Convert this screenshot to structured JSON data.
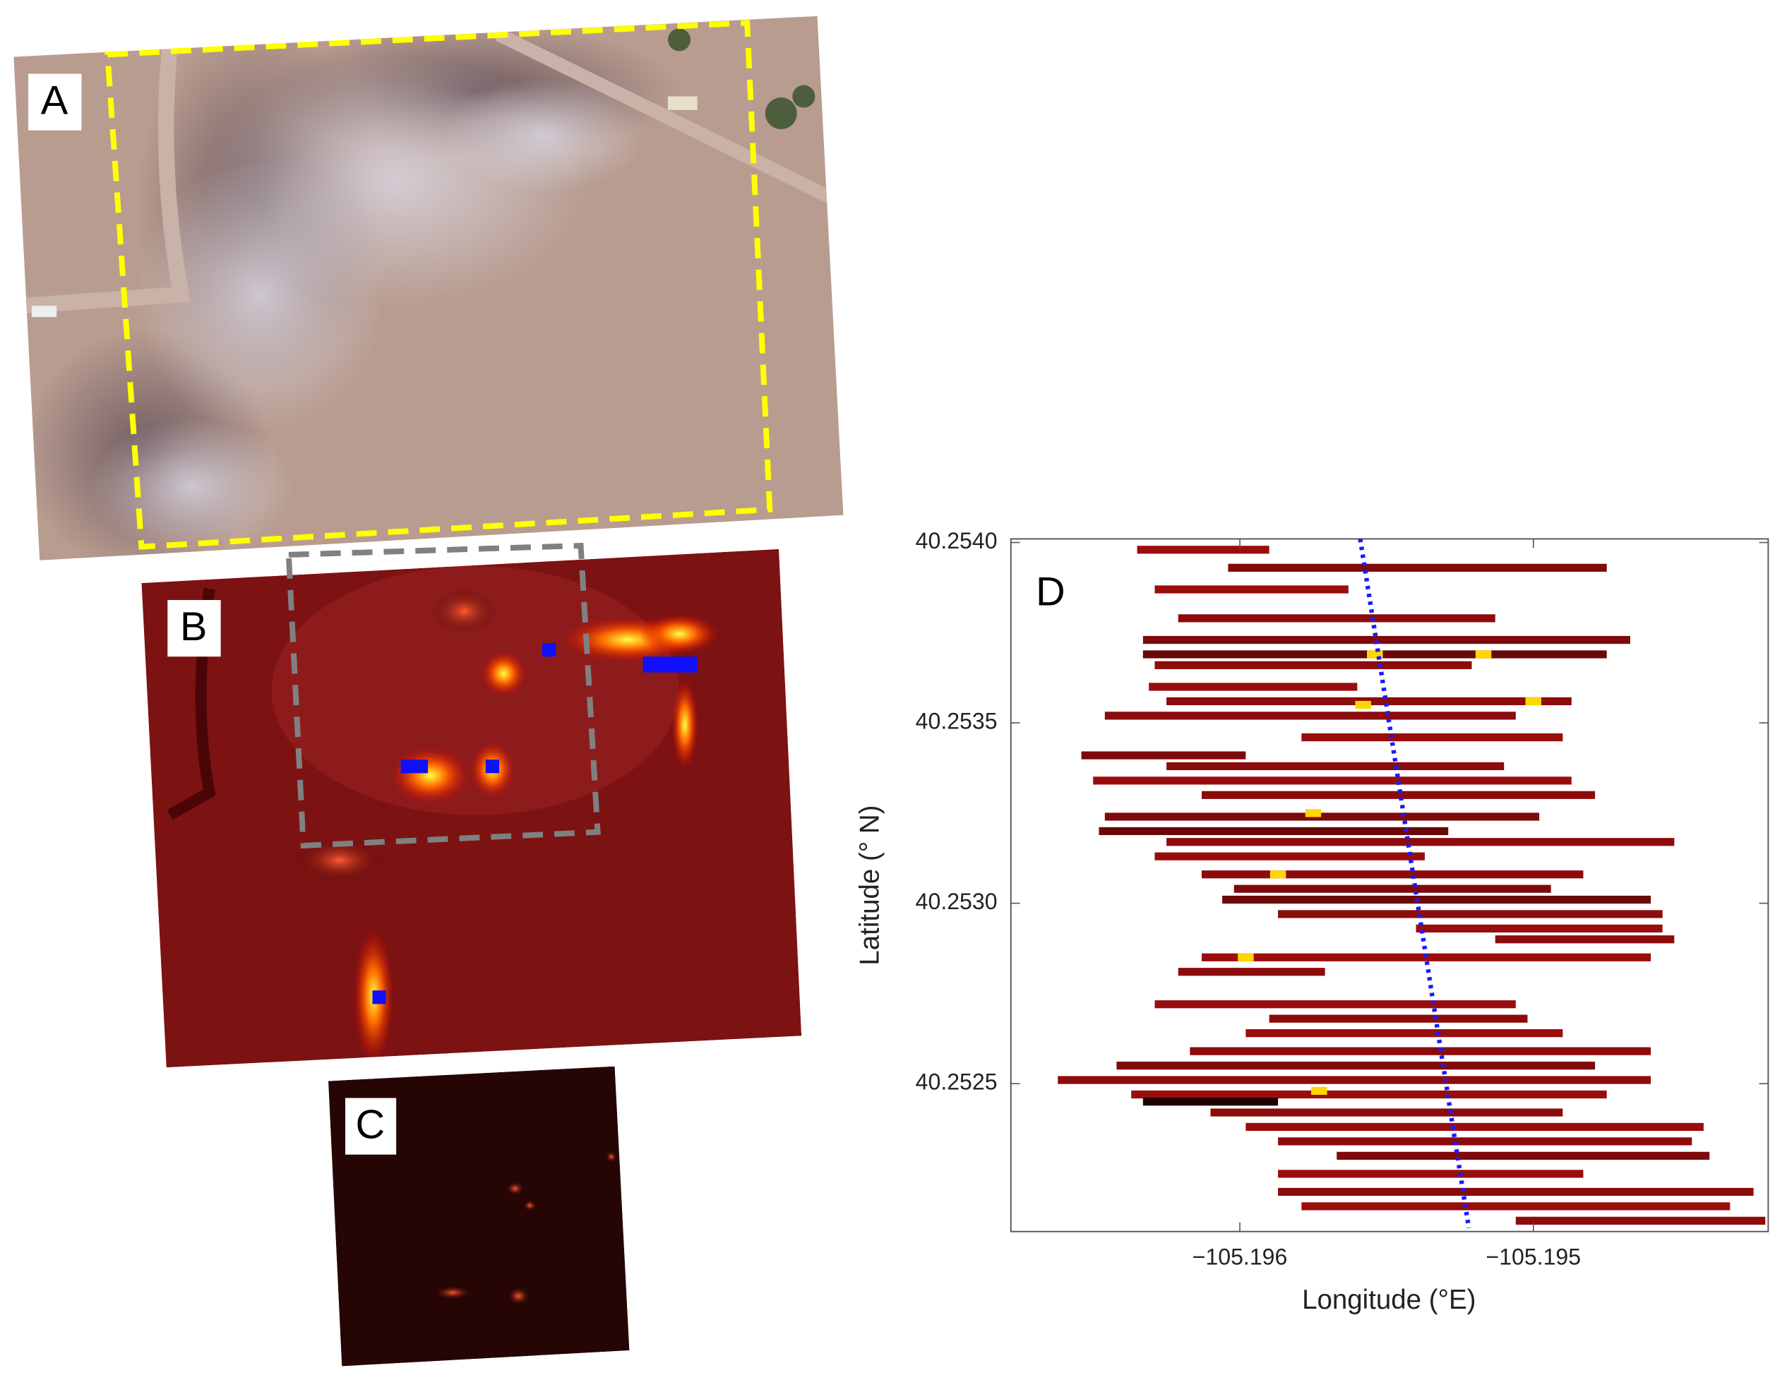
{
  "panel_labels": [
    "A",
    "B",
    "C"
  ],
  "chart_data": {
    "type": "strip",
    "label": "D",
    "xlabel": "Longitude (°E)",
    "ylabel": "Latitude (° N)",
    "xlim": [
      -105.19678,
      -105.1942
    ],
    "ylim": [
      40.25209,
      40.25401
    ],
    "xticks": [
      {
        "value": -105.196,
        "label": "−105.196"
      },
      {
        "value": -105.195,
        "label": "−105.195"
      }
    ],
    "yticks": [
      {
        "value": 40.2525,
        "label": "40.2525"
      },
      {
        "value": 40.253,
        "label": "40.2530"
      },
      {
        "value": 40.2535,
        "label": "40.2535"
      },
      {
        "value": 40.254,
        "label": "40.2540"
      }
    ],
    "strips": [
      {
        "y": 40.25398,
        "x": [
          -105.19635,
          -105.1959
        ],
        "color": "#9a0d0d"
      },
      {
        "y": 40.25393,
        "x": [
          -105.19604,
          -105.19475
        ],
        "color": "#7f0a0a"
      },
      {
        "y": 40.25387,
        "x": [
          -105.19629,
          -105.19563
        ],
        "color": "#9a0d0d"
      },
      {
        "y": 40.25379,
        "x": [
          -105.19621,
          -105.19513
        ],
        "color": "#8c0b0b"
      },
      {
        "y": 40.25373,
        "x": [
          -105.19633,
          -105.19467
        ],
        "color": "#7f0a0a"
      },
      {
        "y": 40.25369,
        "x": [
          -105.19633,
          -105.19475
        ],
        "color": "#6a0808"
      },
      {
        "y": 40.25366,
        "x": [
          -105.19629,
          -105.19521
        ],
        "color": "#8c0b0b"
      },
      {
        "y": 40.2536,
        "x": [
          -105.19631,
          -105.1956
        ],
        "color": "#9a0d0d"
      },
      {
        "y": 40.25356,
        "x": [
          -105.19625,
          -105.19487
        ],
        "color": "#8c0b0b"
      },
      {
        "y": 40.25352,
        "x": [
          -105.19646,
          -105.19506
        ],
        "color": "#8a0c0c"
      },
      {
        "y": 40.25346,
        "x": [
          -105.19579,
          -105.1949
        ],
        "color": "#9a0d0d"
      },
      {
        "y": 40.25341,
        "x": [
          -105.19654,
          -105.19598
        ],
        "color": "#7f0a0a"
      },
      {
        "y": 40.25338,
        "x": [
          -105.19625,
          -105.1951
        ],
        "color": "#8c0b0b"
      },
      {
        "y": 40.25334,
        "x": [
          -105.1965,
          -105.19487
        ],
        "color": "#9a0d0d"
      },
      {
        "y": 40.2533,
        "x": [
          -105.19613,
          -105.19479
        ],
        "color": "#8c0b0b"
      },
      {
        "y": 40.25324,
        "x": [
          -105.19646,
          -105.19498
        ],
        "color": "#7f0a0a"
      },
      {
        "y": 40.2532,
        "x": [
          -105.19648,
          -105.19529
        ],
        "color": "#6a0808"
      },
      {
        "y": 40.25317,
        "x": [
          -105.19625,
          -105.19452
        ],
        "color": "#8c0b0b"
      },
      {
        "y": 40.25313,
        "x": [
          -105.19629,
          -105.19537
        ],
        "color": "#9a0d0d"
      },
      {
        "y": 40.25308,
        "x": [
          -105.19613,
          -105.19483
        ],
        "color": "#8c0b0b"
      },
      {
        "y": 40.25304,
        "x": [
          -105.19602,
          -105.19494
        ],
        "color": "#7f0a0a"
      },
      {
        "y": 40.25301,
        "x": [
          -105.19606,
          -105.1946
        ],
        "color": "#6a0808"
      },
      {
        "y": 40.25297,
        "x": [
          -105.19587,
          -105.19456
        ],
        "color": "#8c0b0b"
      },
      {
        "y": 40.25293,
        "x": [
          -105.1954,
          -105.19456
        ],
        "color": "#9a0d0d"
      },
      {
        "y": 40.2529,
        "x": [
          -105.19513,
          -105.19452
        ],
        "color": "#8c0b0b"
      },
      {
        "y": 40.25285,
        "x": [
          -105.19613,
          -105.1946
        ],
        "color": "#9a0d0d"
      },
      {
        "y": 40.25281,
        "x": [
          -105.19621,
          -105.19571
        ],
        "color": "#8c0b0b"
      },
      {
        "y": 40.25272,
        "x": [
          -105.19629,
          -105.19506
        ],
        "color": "#9a0d0d"
      },
      {
        "y": 40.25268,
        "x": [
          -105.1959,
          -105.19502
        ],
        "color": "#8c0b0b"
      },
      {
        "y": 40.25264,
        "x": [
          -105.19598,
          -105.1949
        ],
        "color": "#9a0d0d"
      },
      {
        "y": 40.25259,
        "x": [
          -105.19617,
          -105.1946
        ],
        "color": "#8c0b0b"
      },
      {
        "y": 40.25255,
        "x": [
          -105.19642,
          -105.19479
        ],
        "color": "#7f0a0a"
      },
      {
        "y": 40.25251,
        "x": [
          -105.19662,
          -105.1946
        ],
        "color": "#8c0b0b"
      },
      {
        "y": 40.25247,
        "x": [
          -105.19637,
          -105.19475
        ],
        "color": "#9a0d0d"
      },
      {
        "y": 40.25245,
        "x": [
          -105.19633,
          -105.19587
        ],
        "color": "#200000"
      },
      {
        "y": 40.25242,
        "x": [
          -105.1961,
          -105.1949
        ],
        "color": "#8c0b0b"
      },
      {
        "y": 40.25238,
        "x": [
          -105.19598,
          -105.19442
        ],
        "color": "#9a0d0d"
      },
      {
        "y": 40.25234,
        "x": [
          -105.19587,
          -105.19446
        ],
        "color": "#8c0b0b"
      },
      {
        "y": 40.2523,
        "x": [
          -105.19567,
          -105.1944
        ],
        "color": "#7f0a0a"
      },
      {
        "y": 40.25225,
        "x": [
          -105.19587,
          -105.19483
        ],
        "color": "#9a0d0d"
      },
      {
        "y": 40.2522,
        "x": [
          -105.19587,
          -105.19425
        ],
        "color": "#8c0b0b"
      },
      {
        "y": 40.25216,
        "x": [
          -105.19579,
          -105.19433
        ],
        "color": "#9a0d0d"
      },
      {
        "y": 40.25212,
        "x": [
          -105.19506,
          -105.19421
        ],
        "color": "#8c0b0b"
      }
    ],
    "hotspots": {
      "color": "#ffd700",
      "x": [
        -105.19554,
        -105.19517,
        -105.19575,
        -105.19587,
        -105.19573,
        -105.19598,
        -105.195,
        -105.19558
      ],
      "y": [
        40.25369,
        40.25369,
        40.25325,
        40.25308,
        40.25248,
        40.25285,
        40.25356,
        40.25355
      ]
    },
    "track": {
      "color": "#1a1aff",
      "x": [
        -105.19559,
        -105.19522
      ],
      "y": [
        40.25401,
        40.2521
      ]
    }
  }
}
